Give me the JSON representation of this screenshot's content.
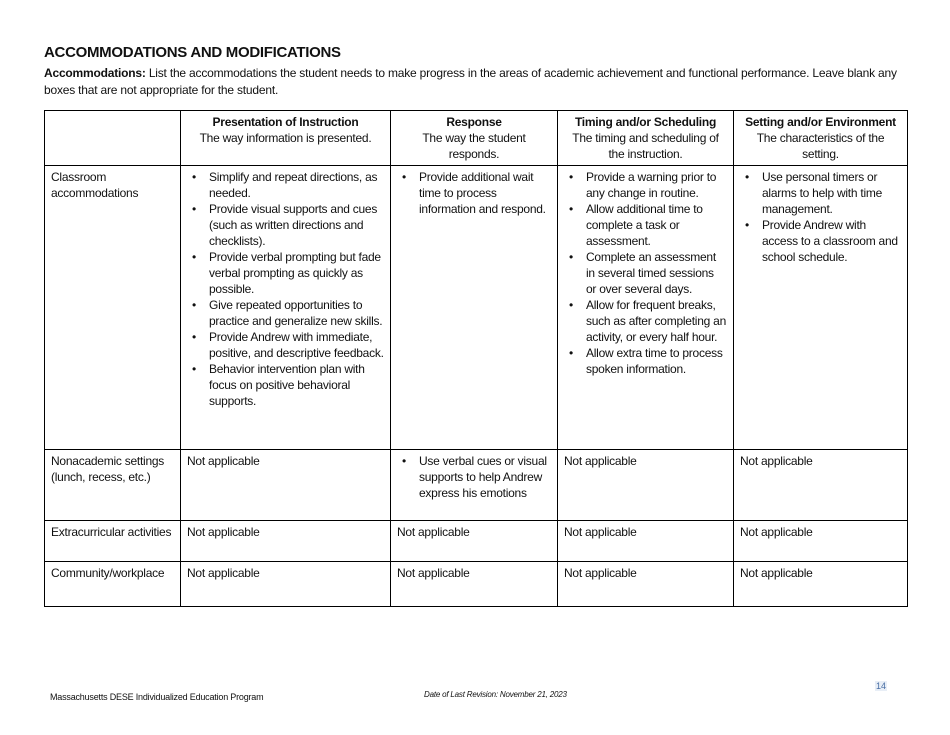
{
  "title": "ACCOMMODATIONS AND MODIFICATIONS",
  "intro": {
    "label": "Accommodations:",
    "text": " List the accommodations the student needs to make progress in the areas of academic achievement and functional performance. Leave blank any boxes that are not appropriate for the student."
  },
  "columns": [
    {
      "heading": "Presentation of Instruction",
      "sub": "The way information is presented."
    },
    {
      "heading": "Response",
      "sub": "The way the student responds."
    },
    {
      "heading": "Timing and/or Scheduling",
      "sub": "The timing and scheduling of the instruction."
    },
    {
      "heading": "Setting and/or Environment",
      "sub": "The characteristics of the setting."
    }
  ],
  "rows": [
    {
      "label": "Classroom accommodations",
      "cells": [
        [
          "Simplify and repeat directions, as needed.",
          "Provide visual supports and cues (such as written directions and checklists).",
          "Provide verbal prompting but fade verbal prompting as quickly as possible.",
          "Give repeated opportunities to practice and generalize new skills.",
          "Provide Andrew with immediate, positive, and descriptive feedback.",
          "Behavior intervention plan with focus on positive behavioral supports."
        ],
        [
          "Provide additional wait time to process information and respond."
        ],
        [
          "Provide a warning prior to any change in routine.",
          "Allow additional time to complete a task or assessment.",
          "Complete an assessment in several timed sessions or over several days.",
          "Allow for frequent breaks, such as after completing an activity, or every half hour.",
          "Allow extra time to process spoken information."
        ],
        [
          "Use personal timers or alarms to help with time management.",
          "Provide Andrew with access to a classroom and school schedule."
        ]
      ]
    },
    {
      "label": "Nonacademic settings (lunch, recess, etc.)",
      "cells": [
        "Not applicable",
        [
          "Use verbal cues or visual supports to help Andrew express his emotions"
        ],
        "Not applicable",
        "Not applicable"
      ]
    },
    {
      "label": "Extracurricular activities",
      "cells": [
        "Not applicable",
        "Not applicable",
        "Not applicable",
        "Not applicable"
      ]
    },
    {
      "label": "Community/workplace",
      "cells": [
        "Not applicable",
        "Not applicable",
        "Not applicable",
        "Not applicable"
      ]
    }
  ],
  "footer": {
    "left": "Massachusetts DESE Individualized Education Program",
    "middle": "Date of Last Revision: November 21, 2023",
    "page": "14"
  }
}
